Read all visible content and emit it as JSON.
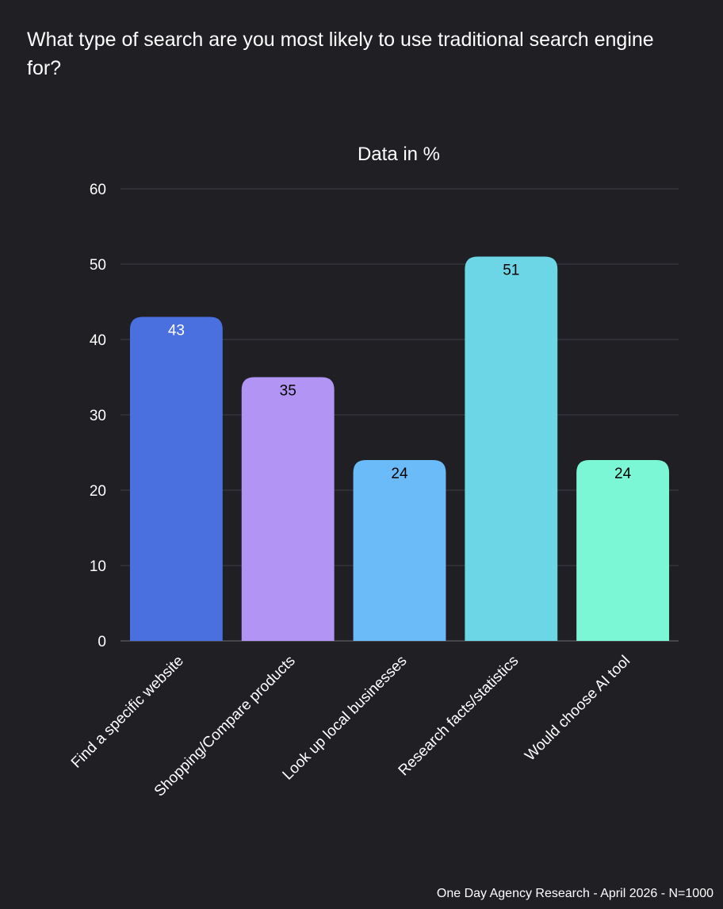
{
  "question": "What type of search are you most likely to use traditional search engine for?",
  "footer": "One Day Agency Research - April 2026 - N=1000",
  "chart_data": {
    "type": "bar",
    "title": "Data in %",
    "categories": [
      "Find a specific website",
      "Shopping/Compare products",
      "Look up local businesses",
      "Research facts/statistics",
      "Would choose AI tool"
    ],
    "values": [
      43,
      35,
      24,
      51,
      24
    ],
    "colors": [
      "#4a6fdf",
      "#b294f5",
      "#6abbf7",
      "#6dd6e6",
      "#7cf7d6"
    ],
    "label_colors": [
      "#ffffff",
      "#000000",
      "#000000",
      "#000000",
      "#000000"
    ],
    "yticks": [
      0,
      10,
      20,
      30,
      40,
      50,
      60
    ],
    "ylim": [
      0,
      60
    ],
    "grid": true,
    "legend": false
  }
}
